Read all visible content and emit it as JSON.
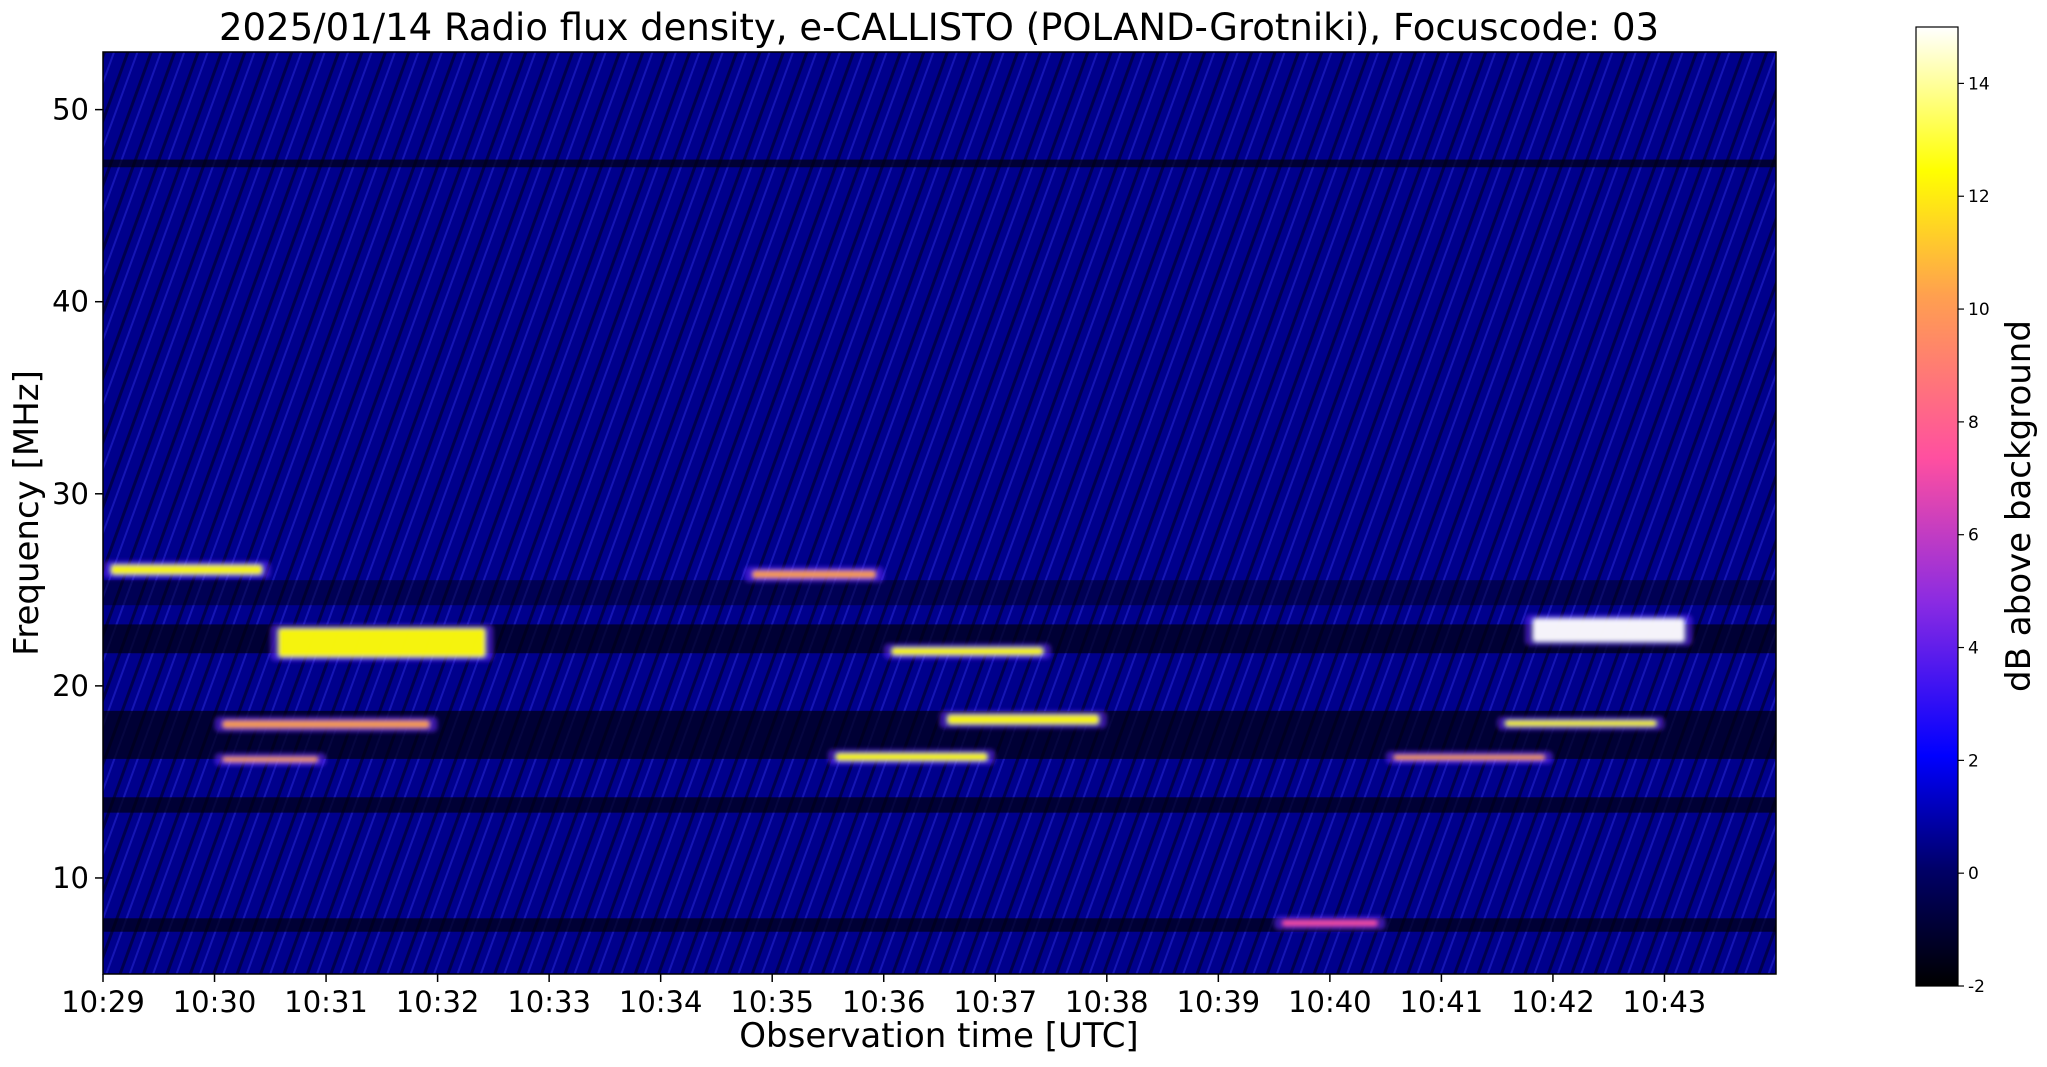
{
  "chart_data": {
    "type": "heatmap",
    "title": "2025/01/14  Radio flux density, e-CALLISTO (POLAND-Grotniki), Focuscode: 03",
    "xlabel": "Observation time [UTC]",
    "ylabel": "Frequency [MHz]",
    "x_ticks": [
      "10:29",
      "10:30",
      "10:31",
      "10:32",
      "10:33",
      "10:34",
      "10:35",
      "10:36",
      "10:37",
      "10:38",
      "10:39",
      "10:40",
      "10:41",
      "10:42",
      "10:43"
    ],
    "xlim": [
      "10:29",
      "10:44"
    ],
    "y_ticks": [
      10,
      20,
      30,
      40,
      50
    ],
    "ylim": [
      5,
      53
    ],
    "colorbar": {
      "label": "dB above background",
      "range": [
        -2,
        15
      ],
      "ticks": [
        -2,
        0,
        2,
        4,
        6,
        8,
        10,
        12,
        14
      ],
      "colormap": "gnuplot2",
      "colors": [
        "#000000",
        "#0000ff",
        "#8a2be2",
        "#ff4fa0",
        "#ffa04f",
        "#ffff00",
        "#ffffff"
      ]
    },
    "bands": [
      {
        "f_start": 25.8,
        "f_end": 26.3,
        "t_start": "10:29:00",
        "t_end": "10:30:30",
        "db": 11
      },
      {
        "f_start": 21.5,
        "f_end": 23.0,
        "t_start": "10:30:30",
        "t_end": "10:32:30",
        "db": 12
      },
      {
        "f_start": 17.8,
        "f_end": 18.2,
        "t_start": "10:30:00",
        "t_end": "10:32:00",
        "db": 9
      },
      {
        "f_start": 16.1,
        "f_end": 16.3,
        "t_start": "10:30:00",
        "t_end": "10:31:00",
        "db": 9
      },
      {
        "f_start": 25.6,
        "f_end": 26.0,
        "t_start": "10:34:45",
        "t_end": "10:36:00",
        "db": 8
      },
      {
        "f_start": 21.6,
        "f_end": 22.0,
        "t_start": "10:36:00",
        "t_end": "10:37:30",
        "db": 12
      },
      {
        "f_start": 16.1,
        "f_end": 16.5,
        "t_start": "10:35:30",
        "t_end": "10:37:00",
        "db": 11
      },
      {
        "f_start": 18.0,
        "f_end": 18.5,
        "t_start": "10:36:30",
        "t_end": "10:38:00",
        "db": 12
      },
      {
        "f_start": 16.2,
        "f_end": 16.4,
        "t_start": "10:40:30",
        "t_end": "10:42:00",
        "db": 10
      },
      {
        "f_start": 22.3,
        "f_end": 23.5,
        "t_start": "10:41:45",
        "t_end": "10:43:15",
        "db": 14
      },
      {
        "f_start": 17.9,
        "f_end": 18.2,
        "t_start": "10:41:30",
        "t_end": "10:43:00",
        "db": 11
      },
      {
        "f_start": 7.5,
        "f_end": 7.8,
        "t_start": "10:39:30",
        "t_end": "10:40:30",
        "db": 6
      }
    ]
  }
}
